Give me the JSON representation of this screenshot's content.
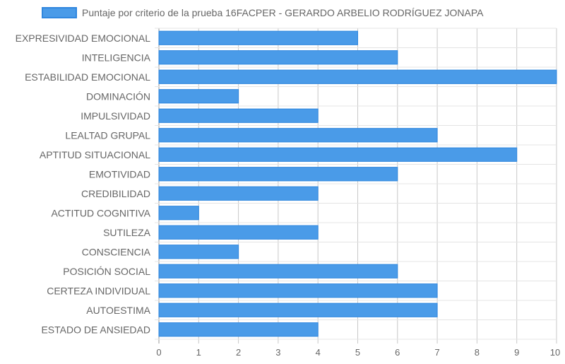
{
  "chart_data": {
    "type": "bar",
    "orientation": "horizontal",
    "categories": [
      "EXPRESIVIDAD EMOCIONAL",
      "INTELIGENCIA",
      "ESTABILIDAD EMOCIONAL",
      "DOMINACIÓN",
      "IMPULSIVIDAD",
      "LEALTAD GRUPAL",
      "APTITUD SITUACIONAL",
      "EMOTIVIDAD",
      "CREDIBILIDAD",
      "ACTITUD COGNITIVA",
      "SUTILEZA",
      "CONSCIENCIA",
      "POSICIÓN SOCIAL",
      "CERTEZA INDIVIDUAL",
      "AUTOESTIMA",
      "ESTADO DE ANSIEDAD"
    ],
    "series": [
      {
        "name": "Puntaje por criterio de la prueba 16FACPER - GERARDO ARBELIO RODRÍGUEZ JONAPA",
        "values": [
          5,
          6,
          10,
          2,
          4,
          7,
          9,
          6,
          4,
          1,
          4,
          2,
          6,
          7,
          7,
          4
        ],
        "color": "#4a9be8",
        "border_color": "#2f86de"
      }
    ],
    "xlim": [
      0,
      10
    ],
    "x_ticks": [
      "0",
      "1",
      "2",
      "3",
      "4",
      "5",
      "6",
      "7",
      "8",
      "9",
      "10"
    ],
    "grid": true,
    "legend": "top-center"
  }
}
